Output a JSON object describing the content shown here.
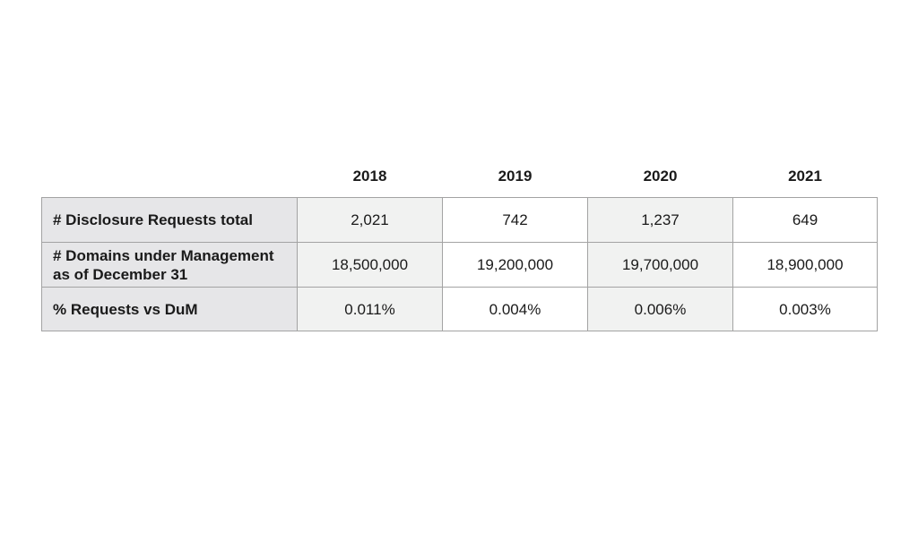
{
  "table": {
    "columns": [
      "2018",
      "2019",
      "2020",
      "2021"
    ],
    "rows": [
      {
        "label": "# Disclosure Requests total",
        "cells": [
          "2,021",
          "742",
          "1,237",
          "649"
        ]
      },
      {
        "label": "# Domains under Management\nas of December 31",
        "cells": [
          "18,500,000",
          "19,200,000",
          "19,700,000",
          "18,900,000"
        ]
      },
      {
        "label": "% Requests vs DuM",
        "cells": [
          "0.011%",
          "0.004%",
          "0.006%",
          "0.003%"
        ]
      }
    ]
  }
}
